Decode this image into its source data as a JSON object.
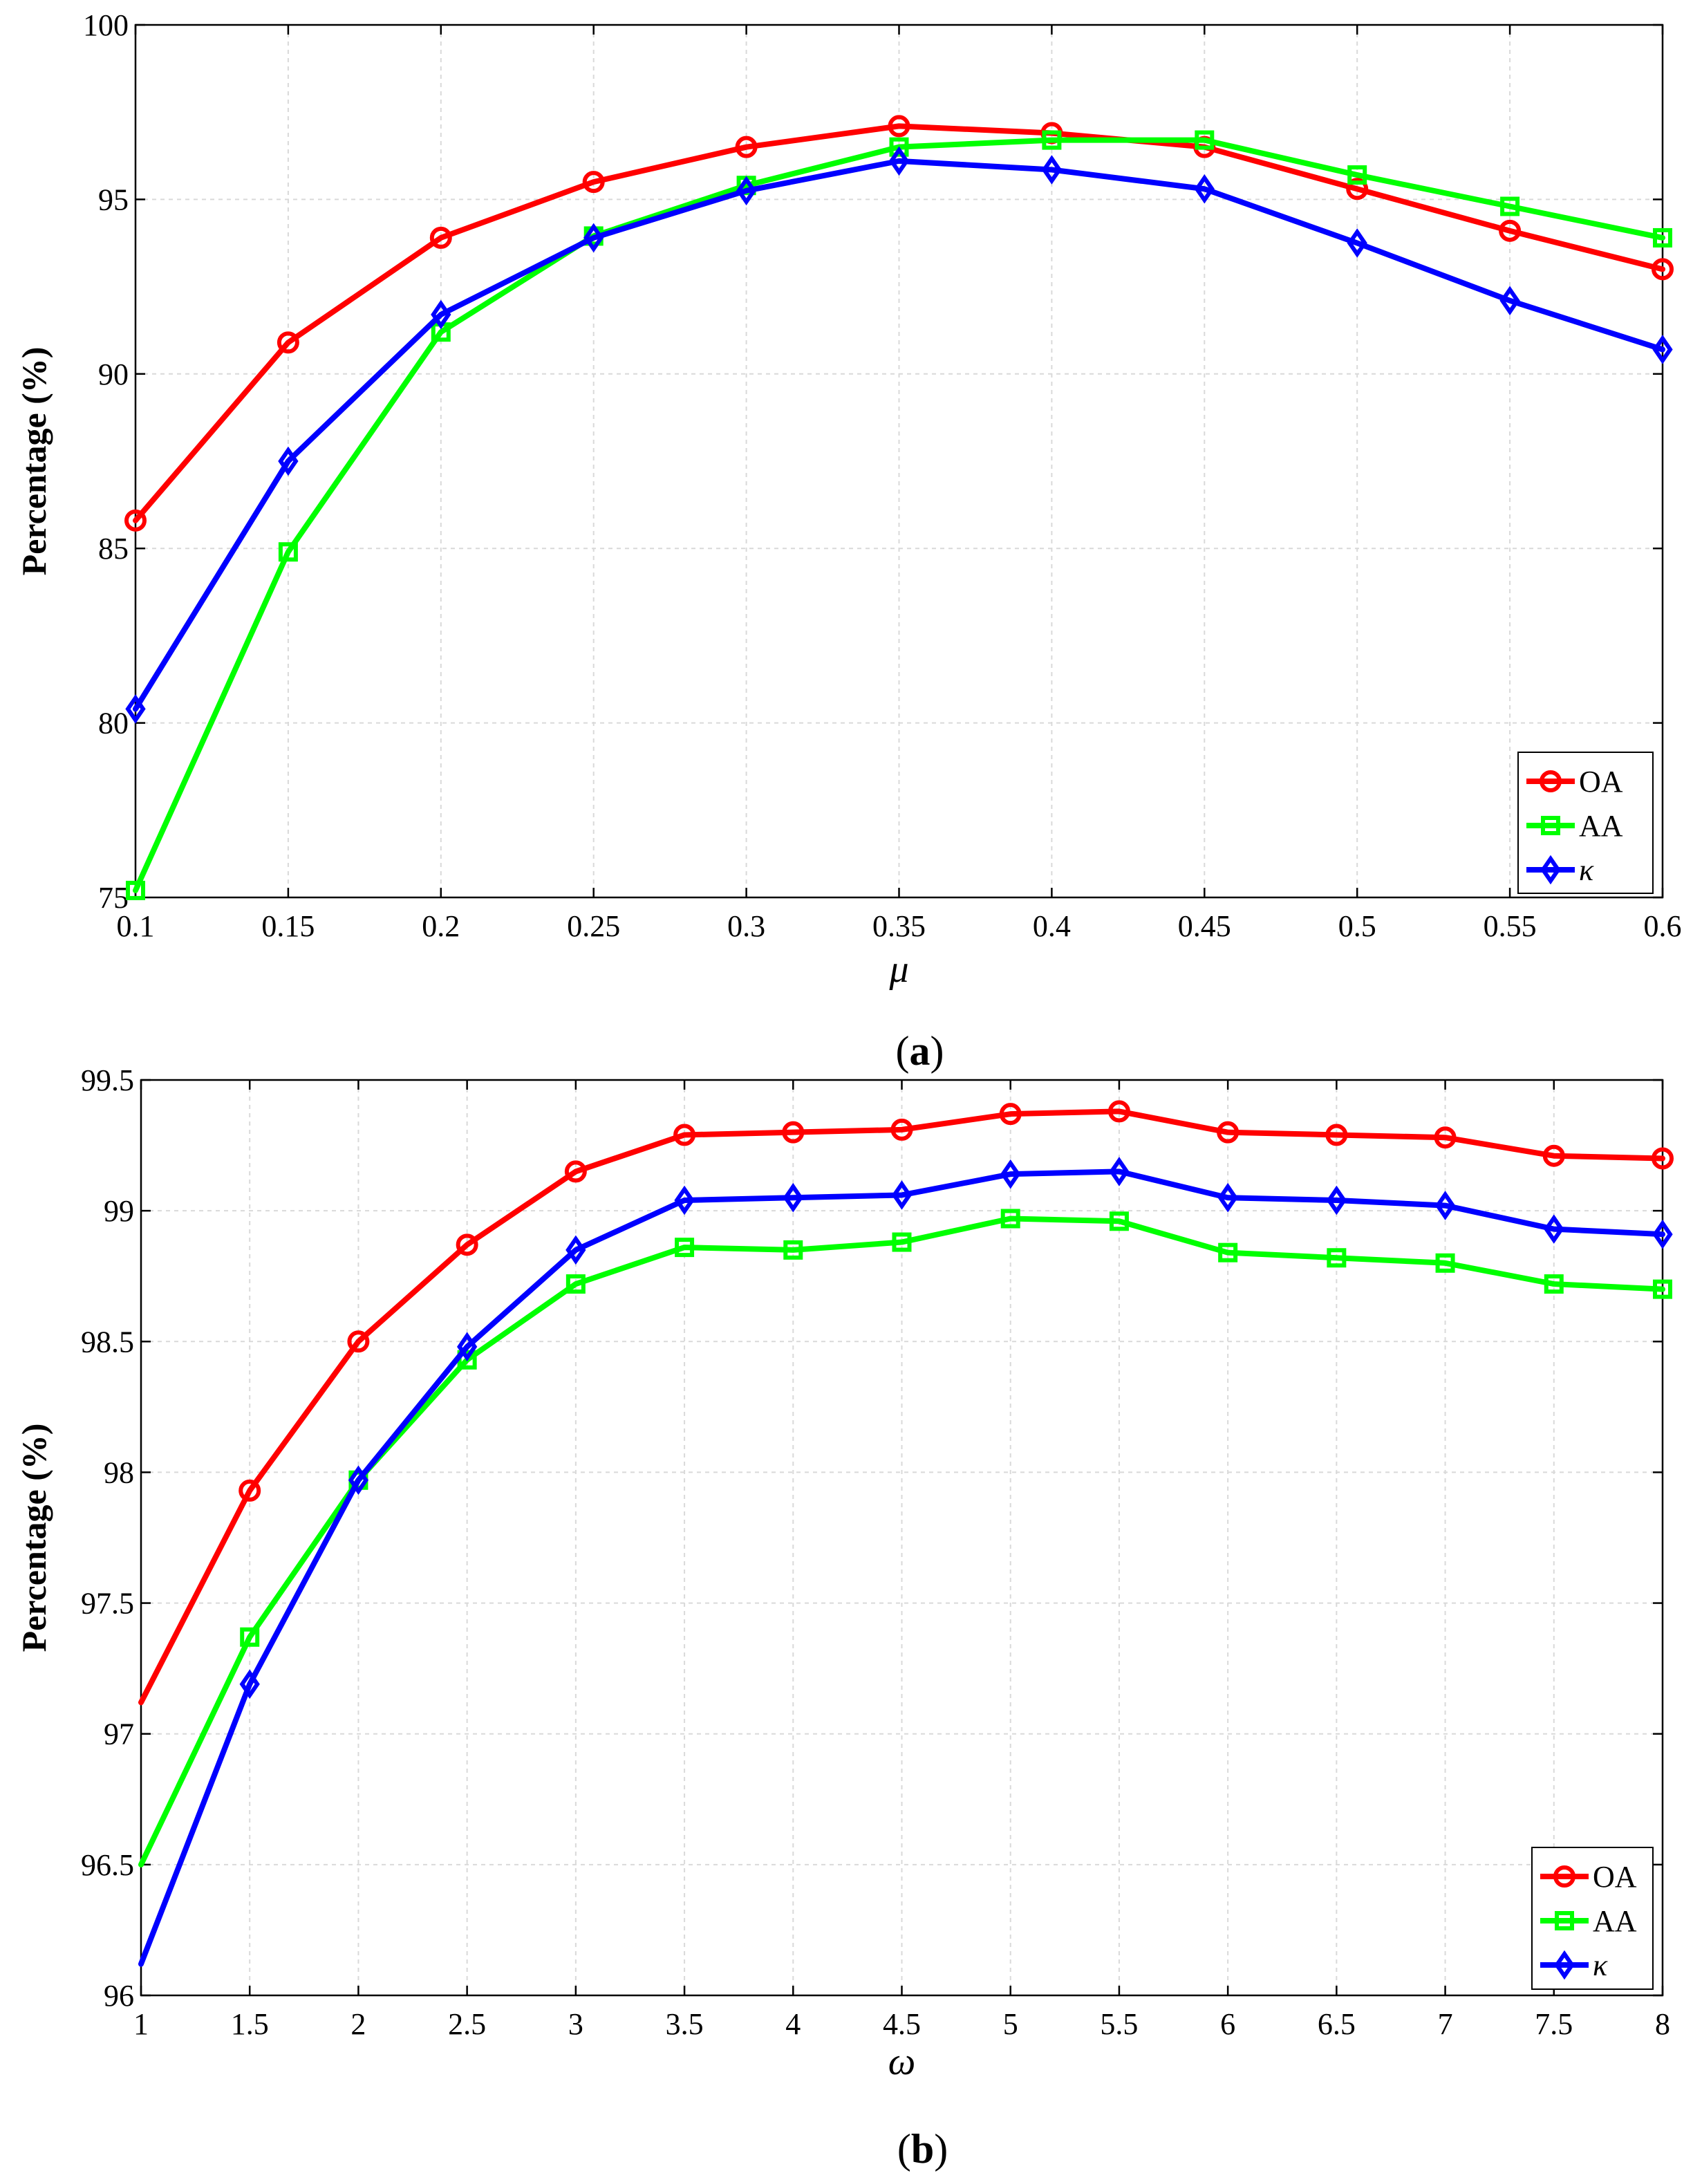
{
  "chart_data": [
    {
      "type": "line",
      "caption_letter": "a",
      "x_symbol": "μ",
      "ylabel": "Percentage (%)",
      "xlim": [
        0.1,
        0.6
      ],
      "ylim": [
        75,
        100
      ],
      "x": [
        0.1,
        0.15,
        0.2,
        0.25,
        0.3,
        0.35,
        0.4,
        0.45,
        0.5,
        0.55,
        0.6
      ],
      "x_ticks": [
        "0.1",
        "0.15",
        "0.2",
        "0.25",
        "0.3",
        "0.35",
        "0.4",
        "0.45",
        "0.5",
        "0.55",
        "0.6"
      ],
      "y_ticks": [
        "75",
        "80",
        "85",
        "90",
        "95",
        "100"
      ],
      "grid": true,
      "legend_position": "bottom-right",
      "series": [
        {
          "name": "OA",
          "color": "#ff0000",
          "marker": "circle",
          "values": [
            85.8,
            90.9,
            93.9,
            95.5,
            96.5,
            97.1,
            96.9,
            96.5,
            95.3,
            94.1,
            93.0
          ]
        },
        {
          "name": "AA",
          "color": "#00ff00",
          "marker": "square",
          "values": [
            75.2,
            84.9,
            91.2,
            93.95,
            95.4,
            96.5,
            96.7,
            96.7,
            95.7,
            94.8,
            93.9
          ]
        },
        {
          "name": "κ",
          "color": "#0000ff",
          "marker": "diamond",
          "values": [
            80.4,
            87.5,
            91.7,
            93.9,
            95.25,
            96.1,
            95.85,
            95.3,
            93.75,
            92.1,
            90.7
          ]
        }
      ]
    },
    {
      "type": "line",
      "caption_letter": "b",
      "x_symbol": "ω",
      "ylabel": "Percentage (%)",
      "xlim": [
        1,
        8
      ],
      "ylim": [
        96,
        99.5
      ],
      "x": [
        1,
        1.5,
        2,
        2.5,
        3,
        3.5,
        4,
        4.5,
        5,
        5.5,
        6,
        6.5,
        7,
        7.5,
        8
      ],
      "x_ticks": [
        "1",
        "1.5",
        "2",
        "2.5",
        "3",
        "3.5",
        "4",
        "4.5",
        "5",
        "5.5",
        "6",
        "6.5",
        "7",
        "7.5",
        "8"
      ],
      "y_ticks": [
        "96",
        "96.5",
        "97",
        "97.5",
        "98",
        "98.5",
        "99",
        "99.5"
      ],
      "grid": true,
      "legend_position": "bottom-right",
      "series": [
        {
          "name": "OA",
          "color": "#ff0000",
          "marker": "circle",
          "values": [
            97.12,
            97.93,
            98.5,
            98.87,
            99.15,
            99.29,
            99.3,
            99.31,
            99.37,
            99.38,
            99.3,
            99.29,
            99.28,
            99.21,
            99.2
          ]
        },
        {
          "name": "AA",
          "color": "#00ff00",
          "marker": "square",
          "values": [
            96.5,
            97.37,
            97.97,
            98.43,
            98.72,
            98.86,
            98.85,
            98.88,
            98.97,
            98.96,
            98.84,
            98.82,
            98.8,
            98.72,
            98.7
          ]
        },
        {
          "name": "κ",
          "color": "#0000ff",
          "marker": "diamond",
          "values": [
            96.12,
            97.19,
            97.97,
            98.48,
            98.85,
            99.04,
            99.05,
            99.06,
            99.14,
            99.15,
            99.05,
            99.04,
            99.02,
            98.93,
            98.91
          ]
        }
      ]
    }
  ]
}
